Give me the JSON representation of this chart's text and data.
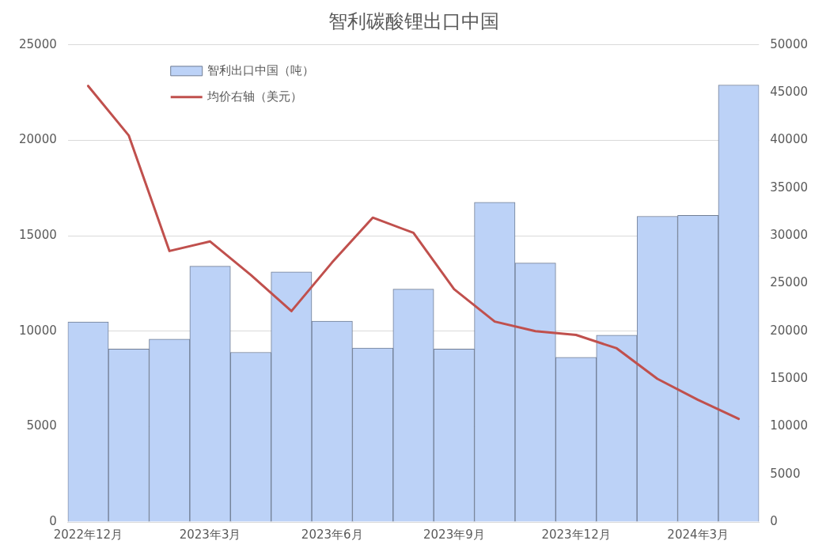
{
  "chart_data": {
    "type": "bar",
    "title": "智利碳酸锂出口中国",
    "categories": [
      "2022年12月",
      null,
      null,
      "2023年3月",
      null,
      null,
      "2023年6月",
      null,
      null,
      "2023年9月",
      null,
      null,
      "2023年12月",
      null,
      null,
      "2024年3月",
      null
    ],
    "series": [
      {
        "name": "智利出口中国（吨）",
        "color": "#bcd2f7",
        "values": [
          10480,
          9060,
          9580,
          13400,
          8890,
          13100,
          10520,
          9110,
          12200,
          9060,
          16750,
          13570,
          8630,
          9790,
          16020,
          16070,
          22900
        ]
      },
      {
        "name": "均价右轴（美元）",
        "type": "line",
        "axis": "y2",
        "color": "#c0504d",
        "values": [
          45700,
          40500,
          28400,
          29400,
          25900,
          22100,
          27200,
          31900,
          30300,
          24400,
          21000,
          20000,
          19600,
          18200,
          15000,
          12800,
          10800
        ]
      }
    ],
    "ylim": [
      0,
      25000
    ],
    "yticks": [
      0,
      5000,
      10000,
      15000,
      20000,
      25000
    ],
    "y2lim": [
      0,
      50000
    ],
    "y2ticks": [
      0,
      5000,
      10000,
      15000,
      20000,
      25000,
      30000,
      35000,
      40000,
      45000,
      50000
    ],
    "grid": "y",
    "legend": "top left",
    "marker": "none",
    "line_style": "solid"
  }
}
